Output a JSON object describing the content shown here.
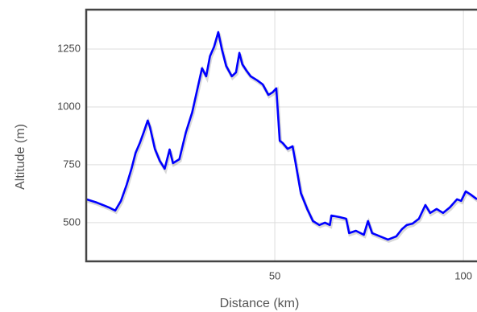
{
  "chart_data": {
    "type": "line",
    "xlabel": "Distance (km)",
    "ylabel": "Altitude (m)",
    "x": [
      0,
      2.8,
      6,
      7.7,
      9.2,
      10.7,
      12,
      13.1,
      14.2,
      15.2,
      16.3,
      16.9,
      18.2,
      19.5,
      20.8,
      22.1,
      23,
      24.7,
      26.4,
      28.1,
      29.6,
      30.7,
      31.8,
      32.8,
      33.9,
      35,
      36,
      37.1,
      38.6,
      39.7,
      40.6,
      41.4,
      42.5,
      43.6,
      45.3,
      46.8,
      48.3,
      49.4,
      50.4,
      51.3,
      52.1,
      53.4,
      54.7,
      55.4,
      56.9,
      58.6,
      60.1,
      61.8,
      63.3,
      64.6,
      65,
      67.2,
      68.9,
      69.7,
      71.5,
      73.6,
      74.7,
      75.8,
      77.9,
      80,
      82.2,
      83.7,
      85,
      86.5,
      88.2,
      89.9,
      91.2,
      92.9,
      94.6,
      96.4,
      98.3,
      99.4,
      100.6,
      101.9,
      103.6
    ],
    "values": [
      601,
      587,
      566,
      552,
      594,
      663,
      733,
      802,
      844,
      889,
      941,
      913,
      819,
      767,
      733,
      816,
      757,
      774,
      889,
      976,
      1087,
      1167,
      1132,
      1219,
      1260,
      1323,
      1247,
      1177,
      1132,
      1149,
      1233,
      1184,
      1156,
      1132,
      1115,
      1097,
      1052,
      1063,
      1080,
      854,
      844,
      819,
      830,
      767,
      628,
      559,
      507,
      490,
      500,
      490,
      531,
      524,
      517,
      455,
      465,
      448,
      507,
      455,
      441,
      427,
      441,
      472,
      490,
      496,
      517,
      576,
      542,
      559,
      542,
      566,
      601,
      594,
      635,
      622,
      601
    ],
    "color": "#0000ff",
    "xlim": [
      0,
      103.6
    ],
    "ylim": [
      333,
      1420
    ],
    "xticks": [
      50,
      100
    ],
    "yticks": [
      500,
      750,
      1000,
      1250
    ],
    "grid": true
  }
}
